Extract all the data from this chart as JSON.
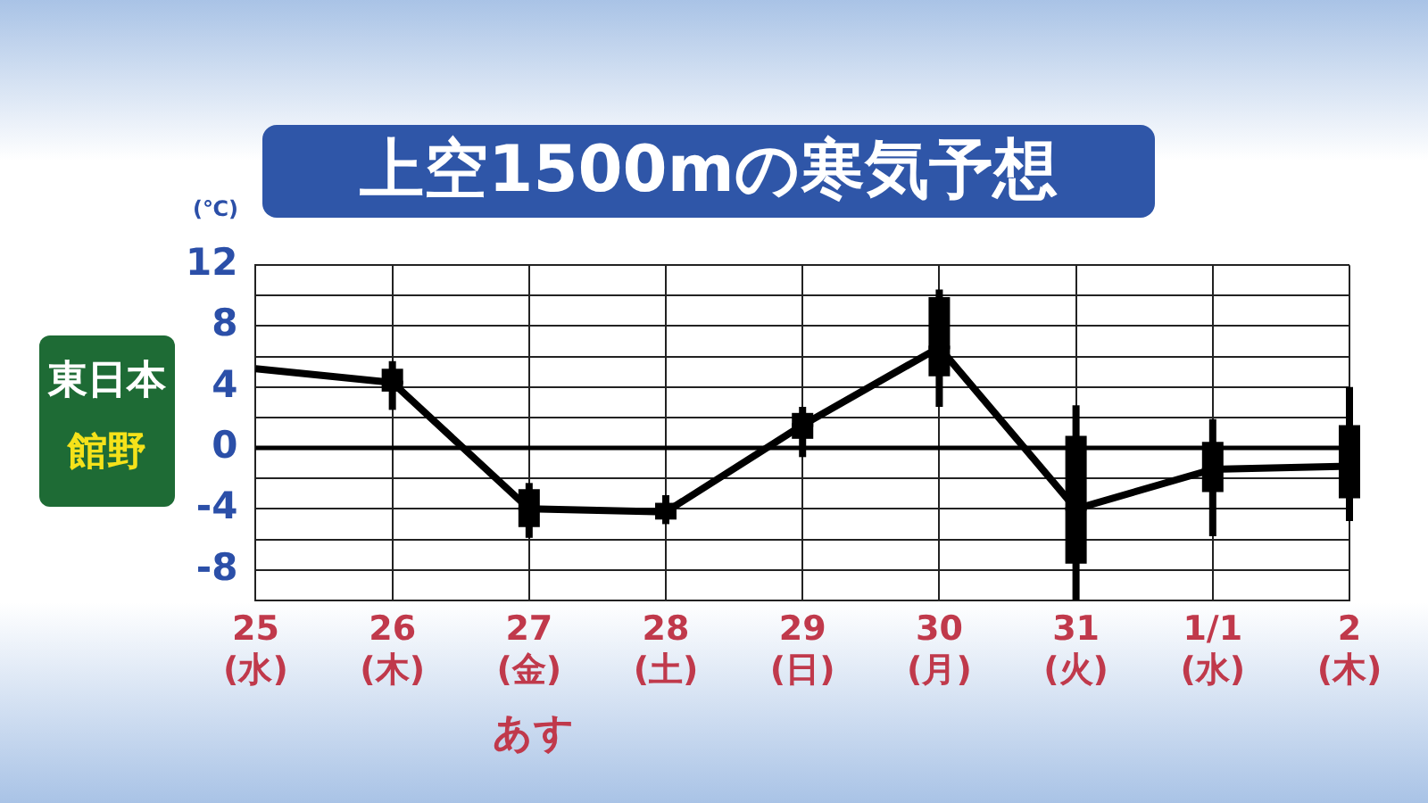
{
  "chart_data": {
    "type": "box",
    "title": "上空1500mの寒気予想",
    "ylabel": "(℃)",
    "annotations": [
      "東日本",
      "館野",
      "あす"
    ],
    "categories": [
      "25\n(水)",
      "26\n(木)",
      "27\n(金)",
      "28\n(土)",
      "29\n(日)",
      "30\n(月)",
      "31\n(火)",
      "1/1\n(水)",
      "2\n(木)"
    ],
    "boxes": [
      null,
      {
        "low": 2.5,
        "q1": 3.7,
        "median": 4.3,
        "q3": 5.2,
        "high": 5.7
      },
      {
        "low": -5.9,
        "q1": -5.2,
        "median": -4,
        "q3": -2.7,
        "high": -2.3
      },
      {
        "low": -5,
        "q1": -4.7,
        "median": -4.2,
        "q3": -3.6,
        "high": -3.1
      },
      {
        "low": -0.6,
        "q1": 0.6,
        "median": 1.5,
        "q3": 2.3,
        "high": 2.7
      },
      {
        "low": 2.7,
        "q1": 4.7,
        "median": 6.6,
        "q3": 9.9,
        "high": 10.4
      },
      {
        "low": -10,
        "q1": -7.6,
        "median": -4,
        "q3": 0.8,
        "high": 2.8
      },
      {
        "low": -5.8,
        "q1": -2.9,
        "median": -1.4,
        "q3": 0.4,
        "high": 1.9
      },
      {
        "low": -4.8,
        "q1": -3.3,
        "median": -1.2,
        "q3": 1.5,
        "high": 4
      }
    ],
    "series": [
      {
        "type": "line",
        "color": "#000000",
        "values": [
          5.2,
          4.3,
          -4,
          -4.2,
          1.5,
          6.6,
          -4,
          -1.4,
          -1.2
        ]
      }
    ],
    "ylim": [
      -10,
      12
    ],
    "yticks": [
      {
        "value": -10,
        "label": null
      },
      -8,
      {
        "value": -6,
        "label": null
      },
      -4,
      {
        "value": -2,
        "label": null
      },
      0,
      {
        "value": 2,
        "label": null
      },
      4,
      {
        "value": 6,
        "label": null
      },
      8,
      {
        "value": 10,
        "label": null
      },
      12
    ],
    "grid": true,
    "legend": false,
    "marker": "none",
    "line_style": "solid"
  }
}
